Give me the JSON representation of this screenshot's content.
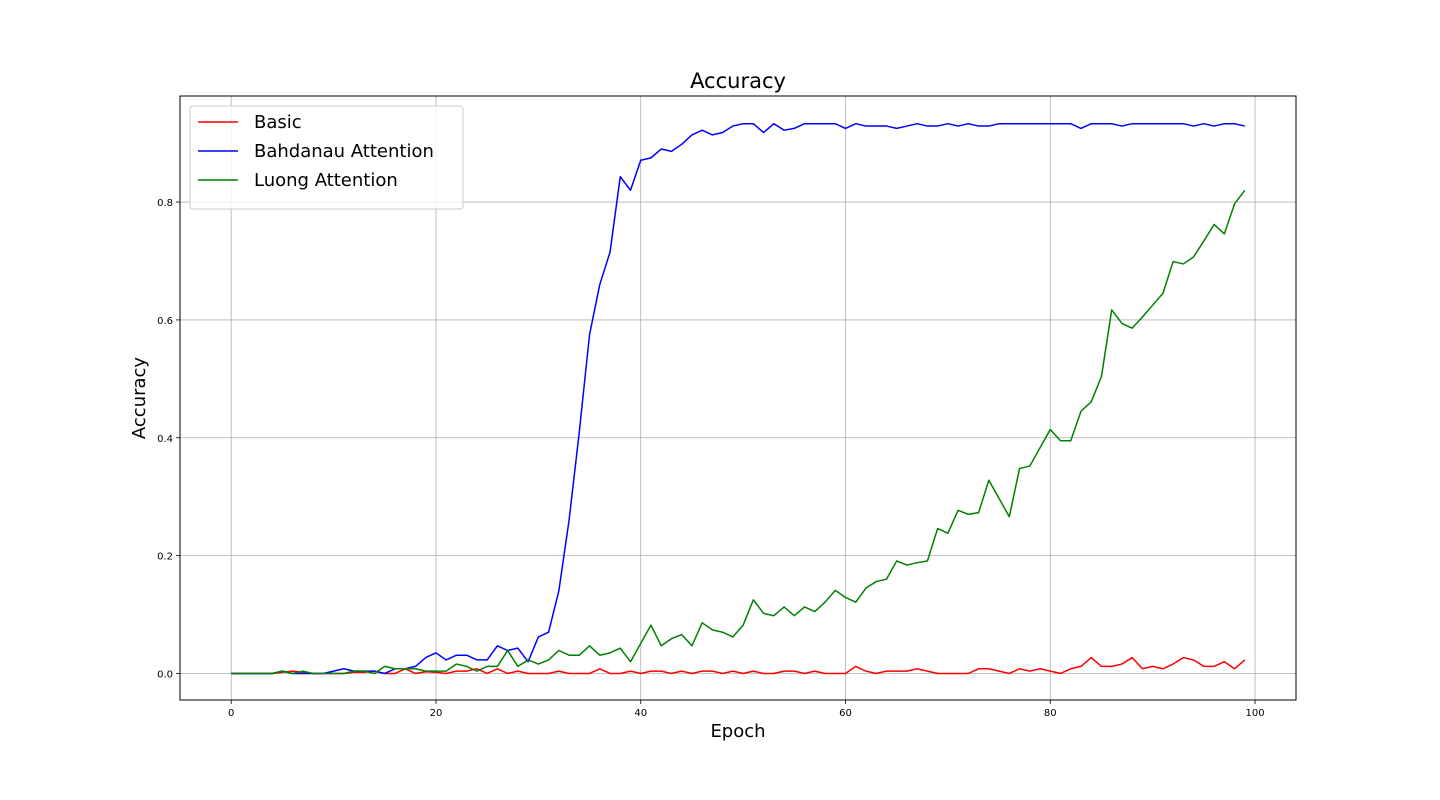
{
  "chart_data": {
    "type": "line",
    "title": "Accuracy",
    "xlabel": "Epoch",
    "ylabel": "Accuracy",
    "xlim": [
      -5,
      104
    ],
    "ylim": [
      -0.045,
      0.98
    ],
    "xticks": [
      0,
      20,
      40,
      60,
      80,
      100
    ],
    "yticks": [
      0.0,
      0.2,
      0.4,
      0.6,
      0.8
    ],
    "grid": true,
    "legend_position": "top-left",
    "x": [
      0,
      1,
      2,
      3,
      4,
      5,
      6,
      7,
      8,
      9,
      10,
      11,
      12,
      13,
      14,
      15,
      16,
      17,
      18,
      19,
      20,
      21,
      22,
      23,
      24,
      25,
      26,
      27,
      28,
      29,
      30,
      31,
      32,
      33,
      34,
      35,
      36,
      37,
      38,
      39,
      40,
      41,
      42,
      43,
      44,
      45,
      46,
      47,
      48,
      49,
      50,
      51,
      52,
      53,
      54,
      55,
      56,
      57,
      58,
      59,
      60,
      61,
      62,
      63,
      64,
      65,
      66,
      67,
      68,
      69,
      70,
      71,
      72,
      73,
      74,
      75,
      76,
      77,
      78,
      79,
      80,
      81,
      82,
      83,
      84,
      85,
      86,
      87,
      88,
      89,
      90,
      91,
      92,
      93,
      94,
      95,
      96,
      97,
      98,
      99
    ],
    "series": [
      {
        "name": "Basic",
        "color": "#ff0000",
        "values": [
          0.0,
          0.0,
          0.0,
          0.0,
          0.0,
          0.002,
          0.004,
          0.002,
          0.0,
          0.0,
          0.0,
          0.0,
          0.002,
          0.002,
          0.004,
          0.0,
          0.0,
          0.008,
          0.0,
          0.003,
          0.002,
          0.0,
          0.004,
          0.004,
          0.008,
          0.0,
          0.008,
          0.0,
          0.004,
          0.0,
          0.0,
          0.0,
          0.004,
          0.0,
          0.0,
          0.0,
          0.008,
          0.0,
          0.0,
          0.004,
          0.0,
          0.004,
          0.004,
          0.0,
          0.004,
          0.0,
          0.004,
          0.004,
          0.0,
          0.004,
          0.0,
          0.004,
          0.0,
          0.0,
          0.004,
          0.004,
          0.0,
          0.004,
          0.0,
          0.0,
          0.0,
          0.012,
          0.004,
          0.0,
          0.004,
          0.004,
          0.004,
          0.008,
          0.004,
          0.0,
          0.0,
          0.0,
          0.0,
          0.008,
          0.008,
          0.004,
          0.0,
          0.008,
          0.004,
          0.008,
          0.004,
          0.0,
          0.008,
          0.012,
          0.027,
          0.012,
          0.012,
          0.016,
          0.027,
          0.008,
          0.012,
          0.008,
          0.016,
          0.027,
          0.023,
          0.012,
          0.012,
          0.02,
          0.008,
          0.023
        ]
      },
      {
        "name": "Bahdanau Attention",
        "color": "#0000ff",
        "values": [
          0.0,
          0.0,
          0.0,
          0.0,
          0.0,
          0.004,
          0.0,
          0.0,
          0.0,
          0.0,
          0.004,
          0.008,
          0.004,
          0.004,
          0.004,
          0.0,
          0.008,
          0.008,
          0.012,
          0.027,
          0.035,
          0.023,
          0.031,
          0.031,
          0.023,
          0.023,
          0.047,
          0.039,
          0.043,
          0.02,
          0.062,
          0.07,
          0.14,
          0.26,
          0.41,
          0.575,
          0.66,
          0.715,
          0.843,
          0.82,
          0.871,
          0.875,
          0.89,
          0.886,
          0.898,
          0.914,
          0.922,
          0.914,
          0.918,
          0.929,
          0.933,
          0.933,
          0.918,
          0.933,
          0.922,
          0.925,
          0.933,
          0.933,
          0.933,
          0.933,
          0.925,
          0.933,
          0.929,
          0.929,
          0.929,
          0.925,
          0.929,
          0.933,
          0.929,
          0.929,
          0.933,
          0.929,
          0.933,
          0.929,
          0.929,
          0.933,
          0.933,
          0.933,
          0.933,
          0.933,
          0.933,
          0.933,
          0.933,
          0.925,
          0.933,
          0.933,
          0.933,
          0.929,
          0.933,
          0.933,
          0.933,
          0.933,
          0.933,
          0.933,
          0.929,
          0.933,
          0.929,
          0.933,
          0.933,
          0.929
        ]
      },
      {
        "name": "Luong Attention",
        "color": "#008000",
        "values": [
          0.0,
          0.0,
          0.0,
          0.0,
          0.0,
          0.004,
          0.0,
          0.004,
          0.0,
          0.0,
          0.0,
          0.0,
          0.004,
          0.004,
          0.0,
          0.012,
          0.008,
          0.008,
          0.008,
          0.004,
          0.004,
          0.004,
          0.016,
          0.012,
          0.004,
          0.012,
          0.012,
          0.039,
          0.012,
          0.023,
          0.016,
          0.023,
          0.039,
          0.031,
          0.031,
          0.047,
          0.031,
          0.035,
          0.043,
          0.02,
          0.051,
          0.082,
          0.047,
          0.059,
          0.066,
          0.047,
          0.086,
          0.074,
          0.07,
          0.062,
          0.082,
          0.125,
          0.102,
          0.098,
          0.113,
          0.098,
          0.113,
          0.105,
          0.121,
          0.141,
          0.129,
          0.121,
          0.145,
          0.156,
          0.16,
          0.191,
          0.184,
          0.188,
          0.191,
          0.246,
          0.238,
          0.277,
          0.27,
          0.273,
          0.328,
          0.297,
          0.266,
          0.348,
          0.352,
          0.383,
          0.414,
          0.395,
          0.395,
          0.445,
          0.461,
          0.504,
          0.617,
          0.594,
          0.586,
          0.605,
          0.625,
          0.645,
          0.699,
          0.695,
          0.707,
          0.734,
          0.762,
          0.746,
          0.797,
          0.82
        ]
      }
    ]
  }
}
